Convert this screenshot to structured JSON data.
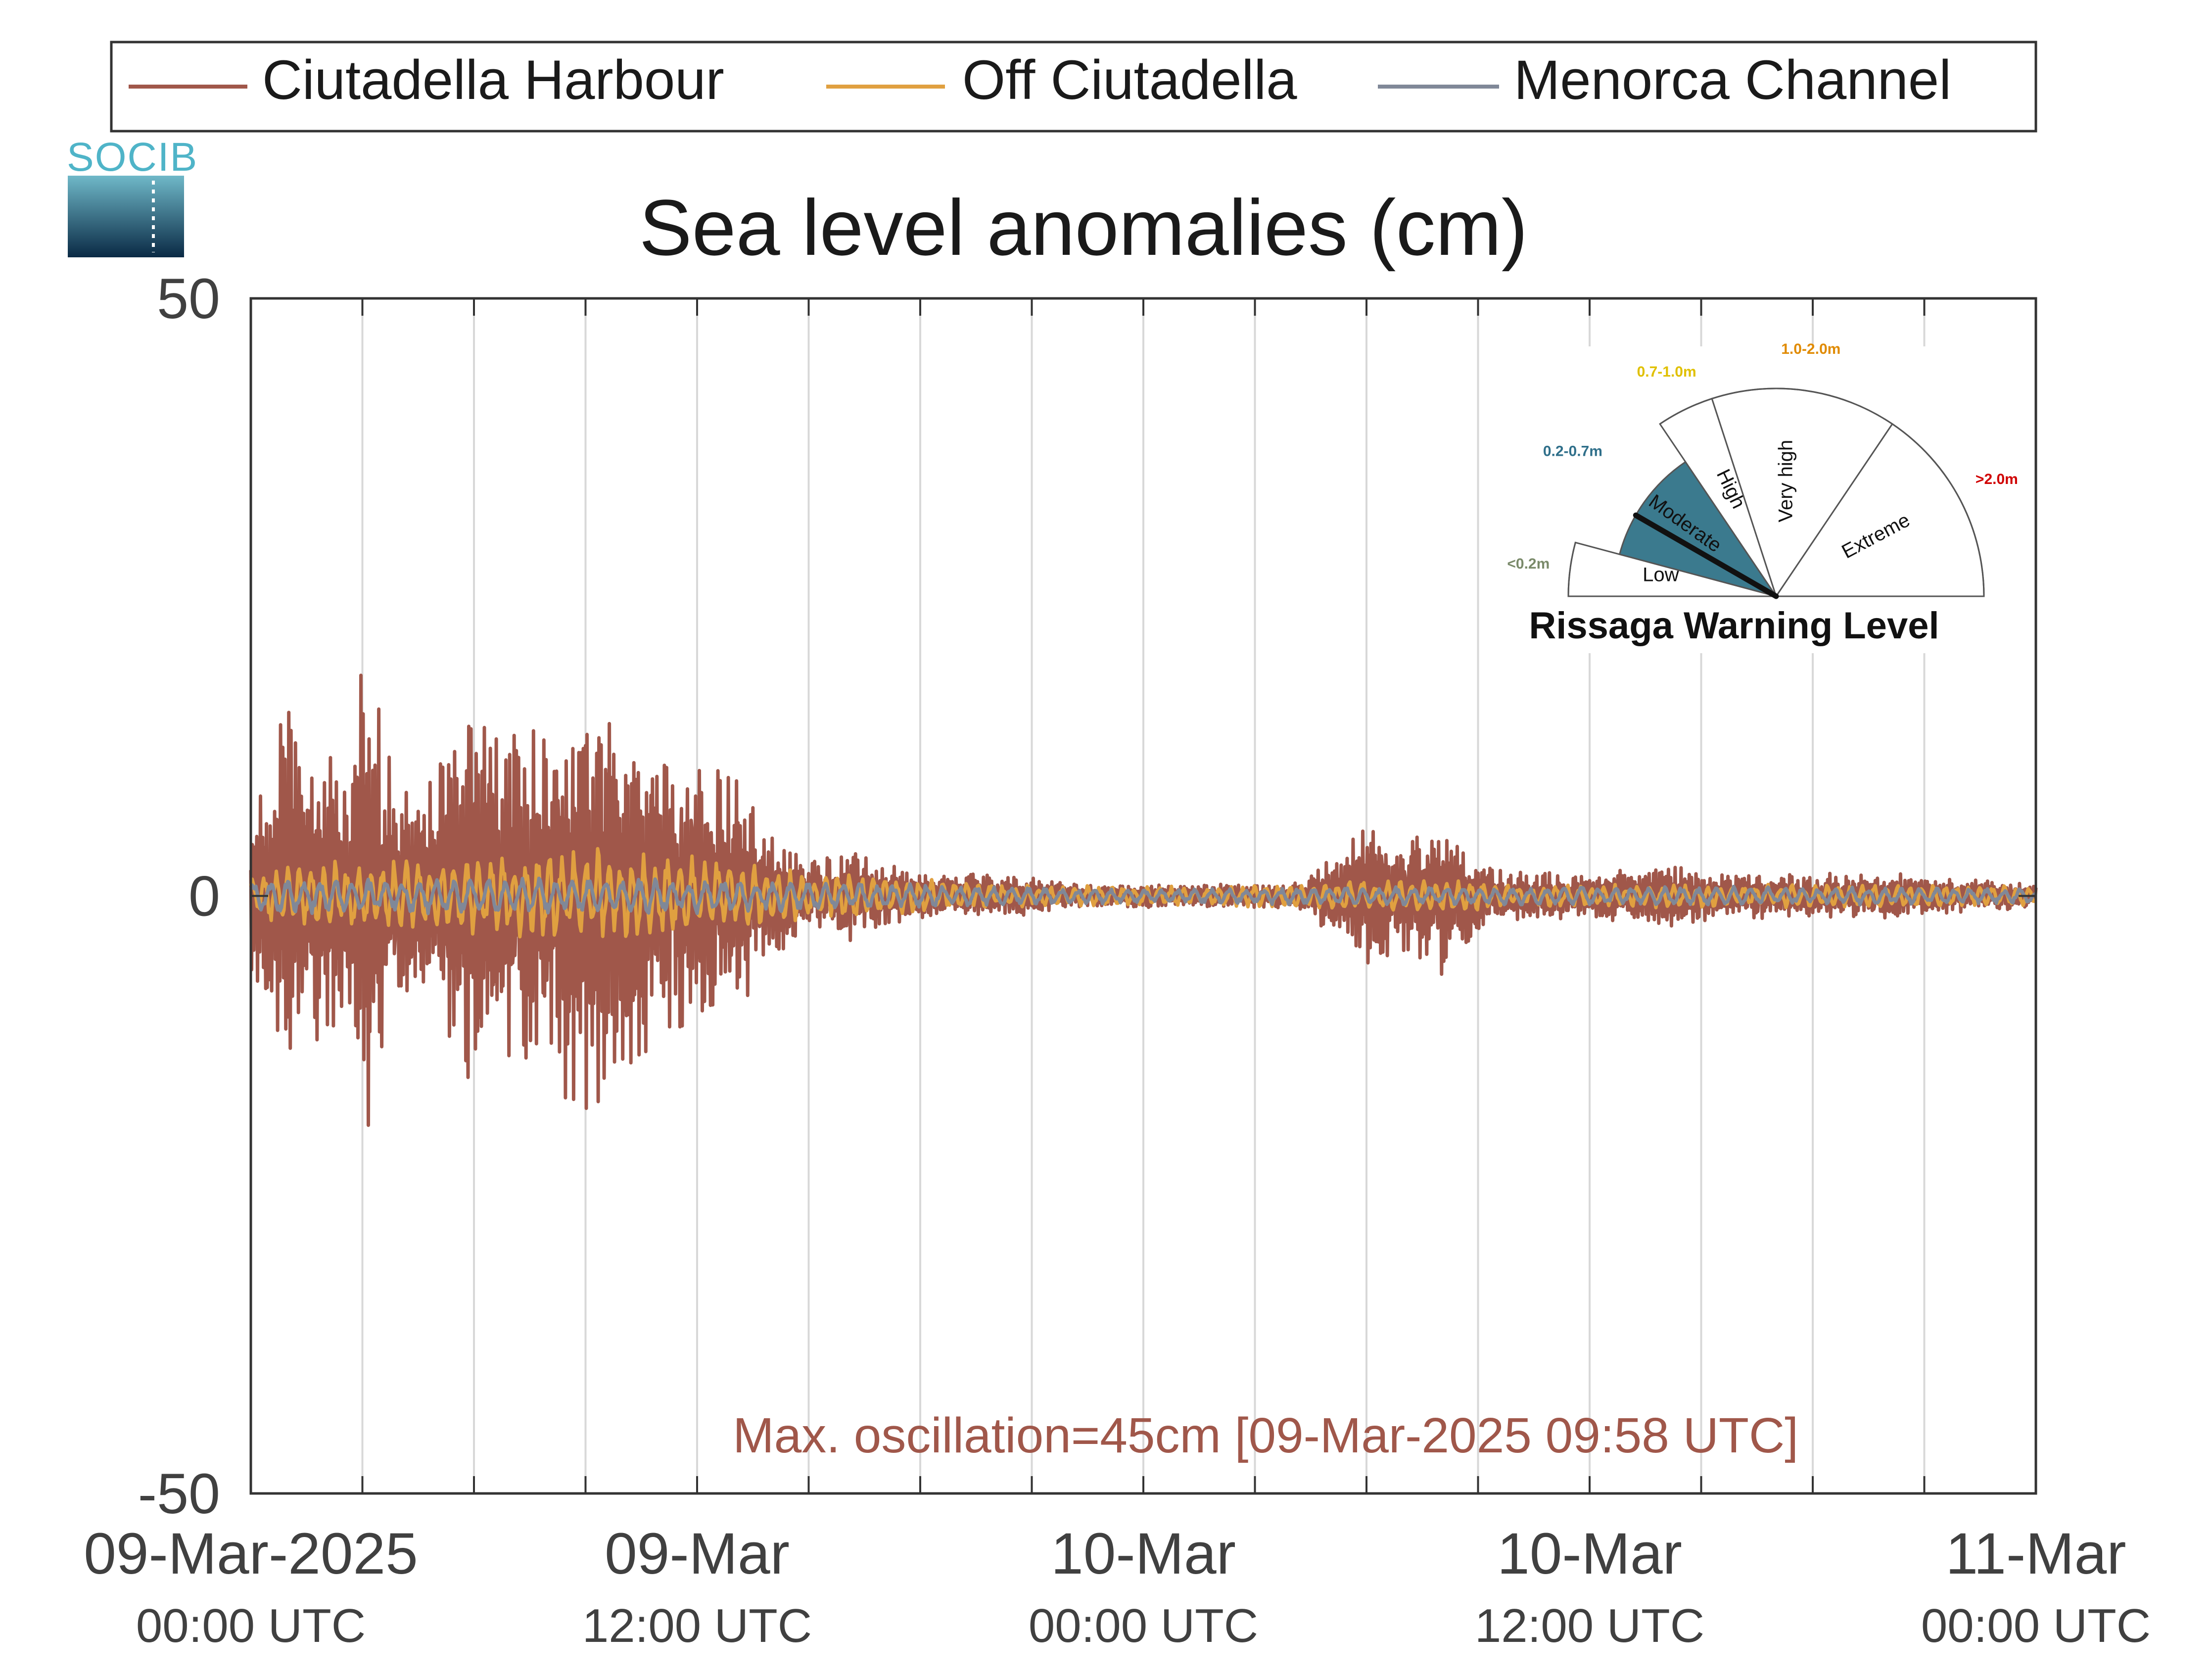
{
  "logo": {
    "text": "SOCIB"
  },
  "legend": {
    "items": [
      {
        "label": "Ciutadella Harbour",
        "color": "#a0574a"
      },
      {
        "label": "Off Ciutadella",
        "color": "#e0a040"
      },
      {
        "label": "Menorca Channel",
        "color": "#808898"
      }
    ]
  },
  "annotation": {
    "max_oscillation": "Max. oscillation=45cm [09-Mar-2025 09:58 UTC]",
    "color": "#a0574a"
  },
  "gauge": {
    "title": "Rissaga Warning Level",
    "sectors": [
      {
        "name": "Low",
        "range": "<0.2m",
        "range_color": "#7a8a6a"
      },
      {
        "name": "Moderate",
        "range": "0.2-0.7m",
        "range_color": "#2f6f8a"
      },
      {
        "name": "High",
        "range": "0.7-1.0m",
        "range_color": "#e0c000"
      },
      {
        "name": "Very high",
        "range": "1.0-2.0m",
        "range_color": "#e08a00"
      },
      {
        "name": "Extreme",
        "range": ">2.0m",
        "range_color": "#d00000"
      }
    ],
    "current_level": "Moderate",
    "active_color": "#3b7a8e"
  },
  "chart_data": {
    "type": "line",
    "title": "Sea level anomalies (cm)",
    "xlabel": "",
    "ylabel": "",
    "ylim": [
      -50,
      50
    ],
    "yticks": [
      -50,
      0,
      50
    ],
    "xlim_hours": [
      0,
      48
    ],
    "xtick_labels": [
      {
        "line1": "09-Mar-2025",
        "line2": "00:00 UTC",
        "hour": 0
      },
      {
        "line1": "09-Mar",
        "line2": "12:00 UTC",
        "hour": 12
      },
      {
        "line1": "10-Mar",
        "line2": "00:00 UTC",
        "hour": 24
      },
      {
        "line1": "10-Mar",
        "line2": "12:00 UTC",
        "hour": 36
      },
      {
        "line1": "11-Mar",
        "line2": "00:00 UTC",
        "hour": 48
      }
    ],
    "grid_hours": [
      3,
      6,
      9,
      12,
      15,
      18,
      21,
      24,
      27,
      30,
      33,
      36,
      39,
      42,
      45
    ],
    "series": [
      {
        "name": "Ciutadella Harbour",
        "color": "#a0574a",
        "envelope": [
          [
            0,
            6
          ],
          [
            1,
            18
          ],
          [
            1.5,
            12
          ],
          [
            2,
            13
          ],
          [
            2.5,
            10
          ],
          [
            3,
            22
          ],
          [
            3.5,
            15
          ],
          [
            4,
            9
          ],
          [
            5,
            12
          ],
          [
            6,
            17
          ],
          [
            7,
            15
          ],
          [
            8,
            16
          ],
          [
            9,
            19
          ],
          [
            10,
            16
          ],
          [
            11,
            14
          ],
          [
            12,
            12
          ],
          [
            13,
            10
          ],
          [
            14,
            6
          ],
          [
            15,
            3
          ],
          [
            16,
            4
          ],
          [
            17,
            3
          ],
          [
            18,
            2
          ],
          [
            20,
            2
          ],
          [
            22,
            1
          ],
          [
            24,
            1
          ],
          [
            26,
            1
          ],
          [
            28,
            1
          ],
          [
            29,
            3
          ],
          [
            30,
            6
          ],
          [
            31,
            5
          ],
          [
            32,
            7
          ],
          [
            33,
            3
          ],
          [
            34,
            2
          ],
          [
            36,
            2
          ],
          [
            38,
            3
          ],
          [
            40,
            2
          ],
          [
            42,
            2
          ],
          [
            44,
            2
          ],
          [
            46,
            1.5
          ],
          [
            48,
            1
          ]
        ]
      },
      {
        "name": "Off Ciutadella",
        "color": "#e0a040",
        "envelope": [
          [
            0,
            2
          ],
          [
            2,
            3
          ],
          [
            4,
            3
          ],
          [
            6,
            3.5
          ],
          [
            8,
            4
          ],
          [
            10,
            4
          ],
          [
            12,
            3.5
          ],
          [
            14,
            2.5
          ],
          [
            16,
            2
          ],
          [
            18,
            1.5
          ],
          [
            20,
            1
          ],
          [
            24,
            0.8
          ],
          [
            28,
            1
          ],
          [
            30,
            1.5
          ],
          [
            32,
            1.5
          ],
          [
            34,
            1
          ],
          [
            36,
            1
          ],
          [
            40,
            1
          ],
          [
            44,
            1
          ],
          [
            48,
            0.8
          ]
        ]
      },
      {
        "name": "Menorca Channel",
        "color": "#808898",
        "envelope": [
          [
            0,
            1.5
          ],
          [
            6,
            1.5
          ],
          [
            12,
            1.5
          ],
          [
            16,
            1.2
          ],
          [
            20,
            0.8
          ],
          [
            24,
            0.6
          ],
          [
            30,
            0.8
          ],
          [
            36,
            0.8
          ],
          [
            42,
            0.8
          ],
          [
            48,
            0.6
          ]
        ]
      }
    ]
  }
}
